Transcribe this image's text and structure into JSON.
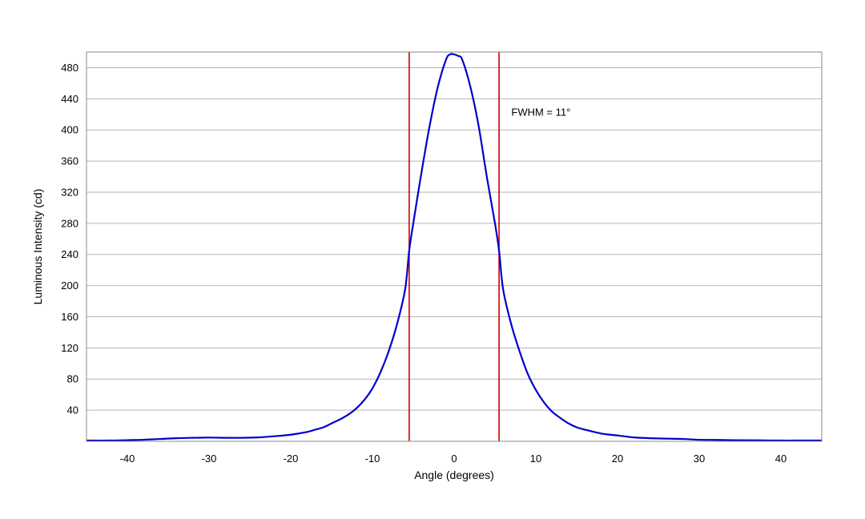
{
  "chart_data": {
    "type": "line",
    "xlabel": "Angle (degrees)",
    "ylabel": "Luminous Intensity (cd)",
    "xlim": [
      -45,
      45
    ],
    "ylim": [
      0,
      500
    ],
    "x_ticks": [
      -40,
      -30,
      -20,
      -10,
      0,
      10,
      20,
      30,
      40
    ],
    "y_ticks": [
      40,
      80,
      120,
      160,
      200,
      240,
      280,
      320,
      360,
      400,
      440,
      480
    ],
    "grid": "horizontal",
    "series": [
      {
        "color": "#0000cc",
        "x": [
          -45,
          -42,
          -40,
          -38,
          -36,
          -34,
          -32,
          -30,
          -28,
          -26,
          -24,
          -22,
          -20,
          -18,
          -17,
          -16,
          -15,
          -14,
          -13,
          -12,
          -11,
          -10,
          -9,
          -8,
          -7,
          -6,
          -5.5,
          -5,
          -4,
          -3,
          -2,
          -1,
          -0.5,
          0,
          0.5,
          1,
          2,
          3,
          4,
          5,
          5.5,
          6,
          7,
          8,
          9,
          10,
          11,
          12,
          13,
          14,
          15,
          16,
          18,
          20,
          22,
          24,
          26,
          28,
          30,
          32,
          34,
          36,
          38,
          40,
          42,
          45
        ],
        "y": [
          1,
          1,
          1.5,
          2,
          3,
          4,
          4.5,
          4.8,
          4.5,
          4.5,
          5,
          6.5,
          8.5,
          12,
          15,
          18,
          23,
          28,
          34,
          42,
          53,
          68,
          89,
          116,
          150,
          195,
          245,
          280,
          345,
          405,
          455,
          490,
          497,
          497,
          495,
          490,
          455,
          405,
          340,
          280,
          245,
          195,
          150,
          116,
          87,
          66,
          50,
          38,
          30,
          23,
          18,
          15,
          10,
          7.5,
          5,
          4,
          3.5,
          3,
          2,
          1.8,
          1.5,
          1.3,
          1.2,
          1,
          1,
          1
        ]
      }
    ],
    "vertical_lines": [
      {
        "x": -5.5,
        "color": "#cc0000"
      },
      {
        "x": 5.5,
        "color": "#cc0000"
      }
    ],
    "annotations": [
      {
        "text": "FWHM = 11°",
        "x": 7,
        "y": 418
      }
    ]
  }
}
